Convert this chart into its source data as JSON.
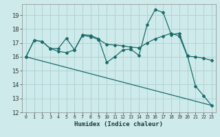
{
  "xlabel": "Humidex (Indice chaleur)",
  "bg_color": "#ceeaea",
  "grid_color": "#afd4d4",
  "line_color": "#1a6b6b",
  "xlim": [
    -0.5,
    23.5
  ],
  "ylim": [
    12,
    19.8
  ],
  "yticks": [
    12,
    13,
    14,
    15,
    16,
    17,
    18,
    19
  ],
  "xticks": [
    0,
    1,
    2,
    3,
    4,
    5,
    6,
    7,
    8,
    9,
    10,
    11,
    12,
    13,
    14,
    15,
    16,
    17,
    18,
    19,
    20,
    21,
    22,
    23
  ],
  "series1_x": [
    0,
    1,
    2,
    3,
    4,
    5,
    6,
    7,
    8,
    9,
    10,
    11,
    12,
    13,
    14,
    15,
    16,
    17,
    18,
    19,
    20,
    21,
    22,
    23
  ],
  "series1_y": [
    16.0,
    17.2,
    17.1,
    16.6,
    16.6,
    17.35,
    16.5,
    17.6,
    17.55,
    17.3,
    15.6,
    16.0,
    16.5,
    16.55,
    16.1,
    18.3,
    19.4,
    19.2,
    17.6,
    17.7,
    16.1,
    13.9,
    13.2,
    12.5
  ],
  "series2_x": [
    0,
    1,
    2,
    3,
    4,
    5,
    6,
    7,
    8,
    9,
    10,
    11,
    12,
    13,
    14,
    15,
    16,
    17,
    18,
    19,
    20,
    21,
    22,
    23
  ],
  "series2_y": [
    16.0,
    17.2,
    17.1,
    16.6,
    16.4,
    16.3,
    16.5,
    17.55,
    17.45,
    17.25,
    16.9,
    16.85,
    16.8,
    16.7,
    16.65,
    17.0,
    17.3,
    17.5,
    17.7,
    17.5,
    16.05,
    16.0,
    15.9,
    15.75
  ],
  "series3_x": [
    0,
    23
  ],
  "series3_y": [
    16.0,
    12.5
  ]
}
